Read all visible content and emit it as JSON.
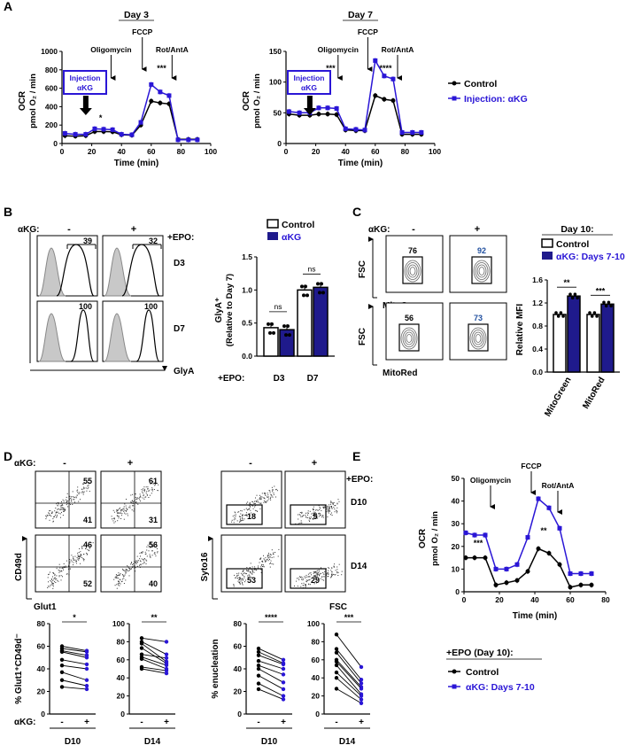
{
  "colors": {
    "control": "#000000",
    "akg": "#2a16d6",
    "akg_fill": "#1f1a8c",
    "histogram_fill": "#c8c8c8"
  },
  "panel_letters": [
    "A",
    "B",
    "C",
    "D",
    "E"
  ],
  "panel_a": {
    "shared_y_label_line1": "OCR",
    "shared_y_label_line2": "pmol O₂ / min",
    "legend": {
      "control": "Control",
      "akg": "Injection: αKG"
    },
    "charts": [
      {
        "title": "Day 3",
        "ylim": [
          0,
          1000
        ],
        "yticks": [
          0,
          200,
          400,
          600,
          800,
          1000
        ],
        "xlim": [
          0,
          100
        ],
        "xticks": [
          0,
          20,
          40,
          60,
          80,
          100
        ],
        "xlabel": "Time (min)",
        "injection_box": [
          "Injection",
          "αKG"
        ],
        "arrows": [
          {
            "label": "Oligomycin",
            "x": 33
          },
          {
            "label": "FCCP",
            "x": 54
          },
          {
            "label": "Rot/AntA",
            "x": 74
          }
        ],
        "significance": [
          {
            "x": 26,
            "text": "*"
          },
          {
            "x": 67,
            "text": "***"
          }
        ],
        "chart_data": {
          "type": "line",
          "x": [
            2,
            9,
            16,
            22,
            28,
            34,
            40,
            47,
            53,
            60,
            66,
            72,
            78,
            85,
            91
          ],
          "series": [
            {
              "name": "Control",
              "values": [
                85,
                80,
                85,
                130,
                130,
                128,
                95,
                90,
                200,
                460,
                440,
                430,
                45,
                45,
                45
              ]
            },
            {
              "name": "Injection: αKG",
              "values": [
                110,
                100,
                100,
                160,
                155,
                150,
                100,
                95,
                230,
                640,
                560,
                520,
                40,
                40,
                40
              ]
            }
          ]
        }
      },
      {
        "title": "Day 7",
        "ylim": [
          0,
          150
        ],
        "yticks": [
          0,
          50,
          100,
          150
        ],
        "xlim": [
          0,
          100
        ],
        "xticks": [
          0,
          20,
          40,
          60,
          80,
          100
        ],
        "xlabel": "Time (min)",
        "injection_box": [
          "Injection",
          "αKG"
        ],
        "arrows": [
          {
            "label": "Oligomycin",
            "x": 35
          },
          {
            "label": "FCCP",
            "x": 55
          },
          {
            "label": "Rot/AntA",
            "x": 75
          }
        ],
        "significance": [
          {
            "x": 30,
            "text": "***"
          },
          {
            "x": 67,
            "text": "****"
          }
        ],
        "chart_data": {
          "type": "line",
          "x": [
            2,
            9,
            16,
            22,
            28,
            34,
            40,
            47,
            53,
            60,
            66,
            72,
            78,
            85,
            91
          ],
          "series": [
            {
              "name": "Control",
              "values": [
                48,
                46,
                46,
                48,
                48,
                47,
                22,
                21,
                21,
                78,
                72,
                70,
                15,
                15,
                15
              ]
            },
            {
              "name": "Injection: αKG",
              "values": [
                52,
                50,
                50,
                58,
                58,
                57,
                24,
                23,
                22,
                135,
                110,
                105,
                18,
                18,
                18
              ]
            }
          ]
        }
      }
    ]
  },
  "panel_b": {
    "akg_label": "αKG:",
    "minus": "-",
    "plus": "+",
    "epo_label": "+EPO:",
    "rows": [
      {
        "day": "D3",
        "values": [
          "39",
          "32"
        ]
      },
      {
        "day": "D7",
        "values": [
          "100",
          "100"
        ]
      }
    ],
    "x_axis_label": "GlyA",
    "legend": {
      "control": "Control",
      "akg": "αKG"
    },
    "bar_chart": {
      "ylabel_line1": "GlyA⁺",
      "ylabel_line2": "(Relative to Day 7)",
      "ylim": [
        0,
        1.5
      ],
      "yticks": [
        "0.0",
        "0.5",
        "1.0",
        "1.5"
      ],
      "epo_label": "+EPO:",
      "ns_labels": [
        "ns",
        "ns"
      ],
      "chart_data": {
        "type": "bar",
        "categories": [
          "D3",
          "D7"
        ],
        "series": [
          {
            "name": "Control",
            "values": [
              0.43,
              1.0
            ]
          },
          {
            "name": "αKG",
            "values": [
              0.4,
              1.04
            ]
          }
        ]
      }
    }
  },
  "panel_c": {
    "akg_label": "αKG:",
    "minus": "-",
    "plus": "+",
    "gates": [
      {
        "axis": "MitoGreen",
        "values": [
          "76",
          "92"
        ]
      },
      {
        "axis": "MitoRed",
        "values": [
          "56",
          "73"
        ]
      }
    ],
    "fsc_label": "FSC",
    "day_title": "Day 10:",
    "legend": {
      "control": "Control",
      "akg": "αKG: Days 7-10"
    },
    "bar_chart": {
      "ylabel": "Relative MFI",
      "ylim": [
        0.0,
        1.6
      ],
      "yticks": [
        "0.0",
        "0.4",
        "0.8",
        "1.2",
        "1.6"
      ],
      "significance": [
        "**",
        "***"
      ],
      "chart_data": {
        "type": "bar",
        "categories": [
          "MitoGreen",
          "MitoRed"
        ],
        "series": [
          {
            "name": "Control",
            "values": [
              1.0,
              1.0
            ]
          },
          {
            "name": "αKG: Days 7-10",
            "values": [
              1.32,
              1.18
            ]
          }
        ]
      }
    }
  },
  "panel_d": {
    "akg_label": "αKG:",
    "minus": "-",
    "plus": "+",
    "epo_label": "+EPO:",
    "quads": [
      {
        "top": [
          "55",
          "61"
        ],
        "bottom": [
          "41",
          "31"
        ]
      },
      {
        "top": [
          "46",
          "56"
        ],
        "bottom": [
          "52",
          "40"
        ]
      }
    ],
    "cd49d_label": "CD49d",
    "glut1_label": "Glut1",
    "syto_gates": [
      {
        "day": "D10",
        "values": [
          "18",
          "5"
        ]
      },
      {
        "day": "D14",
        "values": [
          "53",
          "29"
        ]
      }
    ],
    "syto_label": "Syto16",
    "fsc_label": "FSC",
    "glut_chart": {
      "ylabel": "% Glut1⁺CD49d⁻",
      "xlabel_akg": "αKG:",
      "panels": [
        {
          "day": "D10",
          "ylim": [
            0,
            80
          ],
          "yticks": [
            "0",
            "20",
            "40",
            "60",
            "80"
          ],
          "sig": "*",
          "chart_data": {
            "type": "line",
            "categories": [
              "-",
              "+"
            ],
            "pairs": [
              [
                60,
                56
              ],
              [
                58,
                55
              ],
              [
                56,
                52
              ],
              [
                55,
                50
              ],
              [
                48,
                44
              ],
              [
                43,
                40
              ],
              [
                37,
                30
              ],
              [
                30,
                25
              ],
              [
                24,
                22
              ]
            ]
          }
        },
        {
          "day": "D14",
          "ylim": [
            0,
            100
          ],
          "yticks": [
            "0",
            "20",
            "40",
            "60",
            "80",
            "100"
          ],
          "sig": "**",
          "chart_data": {
            "type": "line",
            "categories": [
              "-",
              "+"
            ],
            "pairs": [
              [
                84,
                80
              ],
              [
                80,
                66
              ],
              [
                78,
                58
              ],
              [
                73,
                56
              ],
              [
                66,
                62
              ],
              [
                63,
                54
              ],
              [
                61,
                50
              ],
              [
                52,
                48
              ],
              [
                50,
                45
              ]
            ]
          }
        }
      ]
    },
    "enuc_chart": {
      "ylabel": "% enucleation",
      "panels": [
        {
          "day": "D10",
          "ylim": [
            0,
            80
          ],
          "yticks": [
            "0",
            "20",
            "40",
            "60",
            "80"
          ],
          "sig": "****",
          "chart_data": {
            "type": "line",
            "categories": [
              "-",
              "+"
            ],
            "pairs": [
              [
                58,
                48
              ],
              [
                55,
                45
              ],
              [
                52,
                44
              ],
              [
                47,
                40
              ],
              [
                43,
                35
              ],
              [
                40,
                28
              ],
              [
                34,
                22
              ],
              [
                27,
                16
              ],
              [
                22,
                13
              ]
            ]
          }
        },
        {
          "day": "D14",
          "ylim": [
            0,
            100
          ],
          "yticks": [
            "0",
            "20",
            "40",
            "60",
            "80",
            "100"
          ],
          "sig": "***",
          "chart_data": {
            "type": "line",
            "categories": [
              "-",
              "+"
            ],
            "pairs": [
              [
                88,
                52
              ],
              [
                72,
                38
              ],
              [
                68,
                34
              ],
              [
                60,
                30
              ],
              [
                58,
                28
              ],
              [
                54,
                22
              ],
              [
                46,
                20
              ],
              [
                40,
                16
              ],
              [
                28,
                12
              ]
            ]
          }
        }
      ]
    }
  },
  "panel_e": {
    "ylabel_line1": "OCR",
    "ylabel_line2": "pmol O₂ / min",
    "xlabel": "Time (min)",
    "arrows": [
      {
        "label": "Oligomycin",
        "x": 15
      },
      {
        "label": "FCCP",
        "x": 38
      },
      {
        "label": "Rot/AntA",
        "x": 53
      }
    ],
    "significance": [
      {
        "x": 8,
        "text": "***"
      },
      {
        "x": 45,
        "text": "**"
      }
    ],
    "ylim": [
      0,
      50
    ],
    "yticks": [
      0,
      10,
      20,
      30,
      40,
      50
    ],
    "xlim": [
      0,
      80
    ],
    "xticks": [
      0,
      20,
      40,
      60,
      80
    ],
    "legend_title": "+EPO (Day 10):",
    "legend": {
      "control": "Control",
      "akg": "αKG: Days 7-10"
    },
    "chart_data": {
      "type": "line",
      "x": [
        1,
        6,
        12,
        18,
        24,
        30,
        36,
        42,
        48,
        54,
        60,
        66,
        72
      ],
      "series": [
        {
          "name": "Control",
          "values": [
            15,
            15,
            15,
            3,
            4,
            5,
            9,
            19,
            17,
            12,
            2,
            3,
            3
          ]
        },
        {
          "name": "αKG: Days 7-10",
          "values": [
            26,
            25,
            25,
            10,
            10,
            12,
            24,
            41,
            37,
            28,
            8,
            8,
            8
          ]
        }
      ]
    }
  }
}
